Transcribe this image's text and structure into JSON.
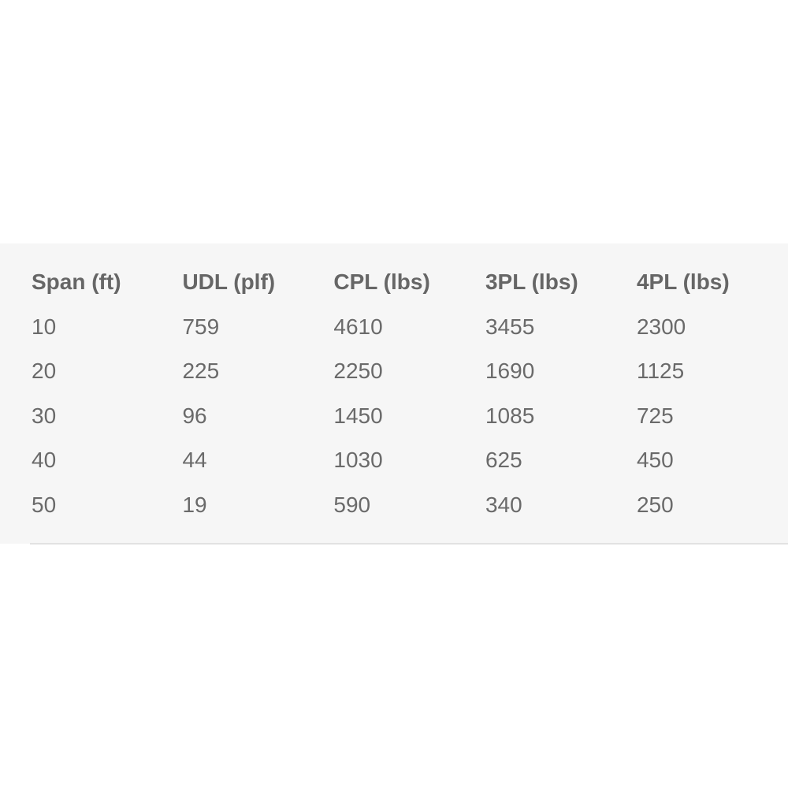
{
  "table": {
    "headers": [
      "Span (ft)",
      "UDL (plf)",
      "CPL (lbs)",
      "3PL (lbs)",
      "4PL (lbs)"
    ],
    "rows": [
      [
        "10",
        "759",
        "4610",
        "3455",
        "2300"
      ],
      [
        "20",
        "225",
        "2250",
        "1690",
        "1125"
      ],
      [
        "30",
        "96",
        "1450",
        "1085",
        "725"
      ],
      [
        "40",
        "44",
        "1030",
        "625",
        "450"
      ],
      [
        "50",
        "19",
        "590",
        "340",
        "250"
      ]
    ]
  }
}
